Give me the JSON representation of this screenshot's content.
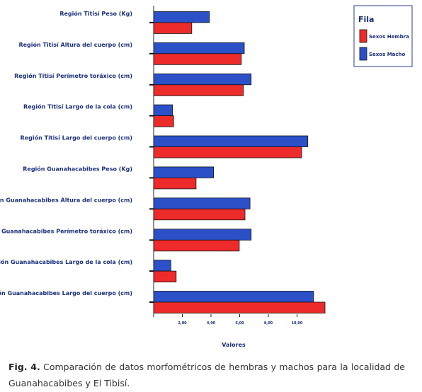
{
  "chart_data": {
    "type": "bar",
    "orientation": "horizontal",
    "categories": [
      "Región Titisí Peso (Kg)",
      "Región Titisí Altura del cuerpo (cm)",
      "Región Titisí Perímetro toráxico (cm)",
      "Región Titisí Largo de la cola (cm)",
      "Región Titisí Largo del cuerpo (cm)",
      "Región Guanahacabibes Peso (Kg)",
      "Región Guanahacabibes Altura del cuerpo (cm)",
      "Región Guanahacabibes Perímetro toráxico (cm)",
      "Región Guanahacabibes Largo de la cola (cm)",
      "Región Guanahacabibes Largo del cuerpo (cm)"
    ],
    "series": [
      {
        "name": "Sexos Hembra",
        "color": "#ee2b2b",
        "values": [
          16.6,
          38.2,
          39.1,
          8.7,
          64.5,
          18.5,
          39.8,
          37.3,
          9.8,
          74.7
        ]
      },
      {
        "name": "Sexos Macho",
        "color": "#2b50c8",
        "values": [
          24.3,
          39.5,
          42.5,
          8.2,
          67.2,
          26.1,
          42.0,
          42.5,
          7.5,
          69.7
        ]
      }
    ],
    "xlim": [
      0,
      75
    ],
    "xticks": [
      12.5,
      25,
      37.5,
      50,
      62.5
    ],
    "xtick_labels": [
      "2,00",
      "4,00",
      "6,00",
      "8,00",
      "10,00"
    ],
    "xlabel": "Valores",
    "legend": {
      "title": "Fila",
      "position": "top-right"
    },
    "grid": false
  },
  "caption": {
    "label": "Fig. 4.",
    "text": "Comparación de datos morfométricos de hembras y machos para la localidad de Guanahacabibes y El Tibisí."
  }
}
